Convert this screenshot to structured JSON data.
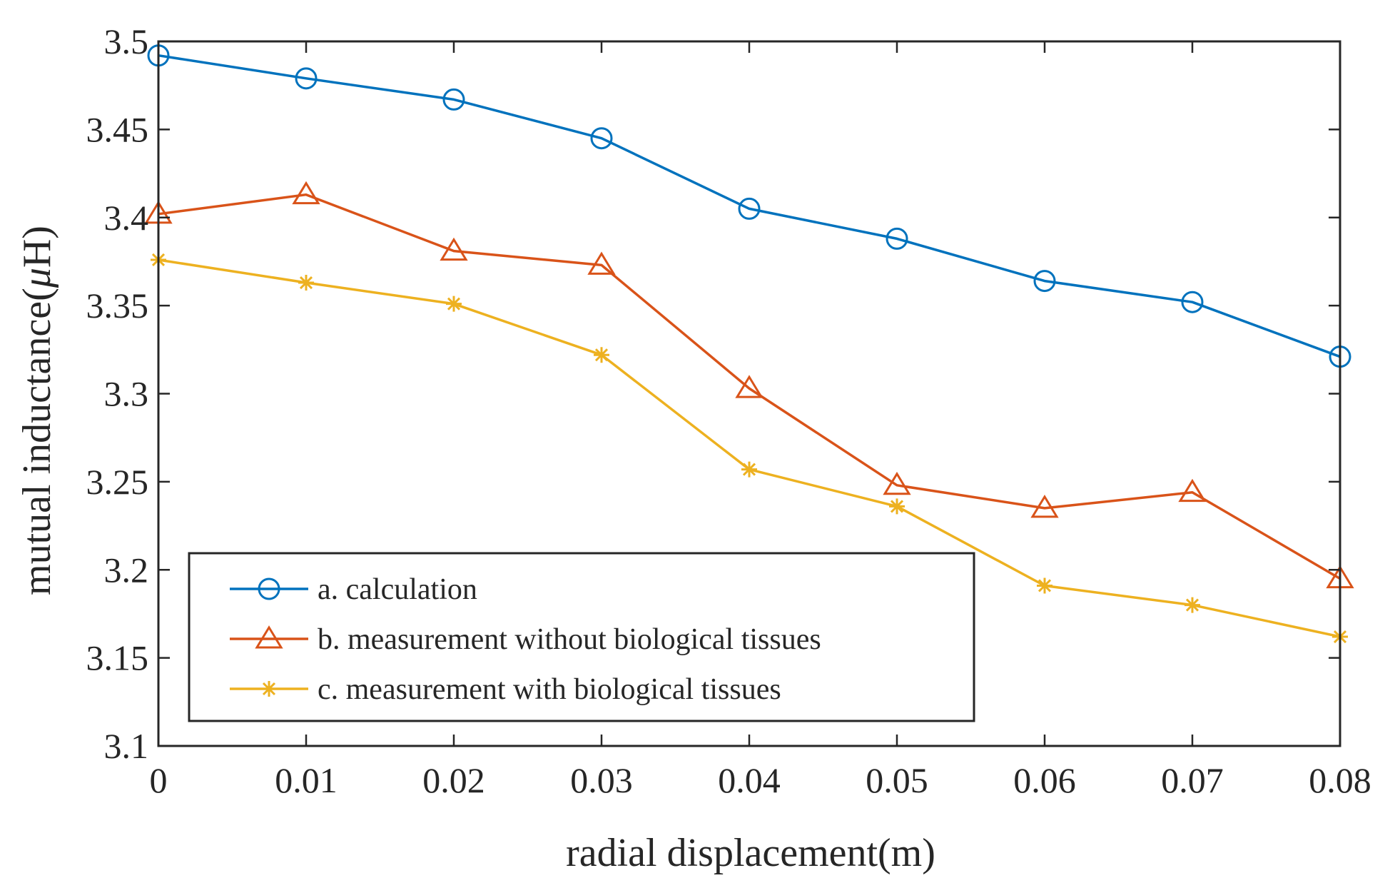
{
  "chart_data": {
    "type": "line",
    "title": "",
    "xlabel": "radial displacement(m)",
    "ylabel": "mutual inductance(",
    "ylabel_unit_symbol": "μ",
    "ylabel_unit_rest": "H)",
    "xlim": [
      0,
      0.08
    ],
    "ylim": [
      3.1,
      3.5
    ],
    "x_ticks": [
      "0",
      "0.01",
      "0.02",
      "0.03",
      "0.04",
      "0.05",
      "0.06",
      "0.07",
      "0.08"
    ],
    "y_ticks": [
      "3.1",
      "3.15",
      "3.2",
      "3.25",
      "3.3",
      "3.35",
      "3.4",
      "3.45",
      "3.5"
    ],
    "grid": false,
    "legend_position": "bottom-left",
    "x": [
      0,
      0.01,
      0.02,
      0.03,
      0.04,
      0.05,
      0.06,
      0.07,
      0.08
    ],
    "series": [
      {
        "name": "a. calculation",
        "color": "#0072BD",
        "marker": "circle",
        "values": [
          3.492,
          3.479,
          3.467,
          3.445,
          3.405,
          3.388,
          3.364,
          3.352,
          3.321
        ]
      },
      {
        "name": "b. measurement without biological tissues",
        "color": "#D95319",
        "marker": "triangle",
        "values": [
          3.402,
          3.413,
          3.381,
          3.373,
          3.303,
          3.248,
          3.235,
          3.244,
          3.195
        ]
      },
      {
        "name": "c. measurement with biological tissues",
        "color": "#EDB120",
        "marker": "asterisk",
        "values": [
          3.376,
          3.363,
          3.351,
          3.322,
          3.257,
          3.236,
          3.191,
          3.18,
          3.162
        ]
      }
    ]
  }
}
